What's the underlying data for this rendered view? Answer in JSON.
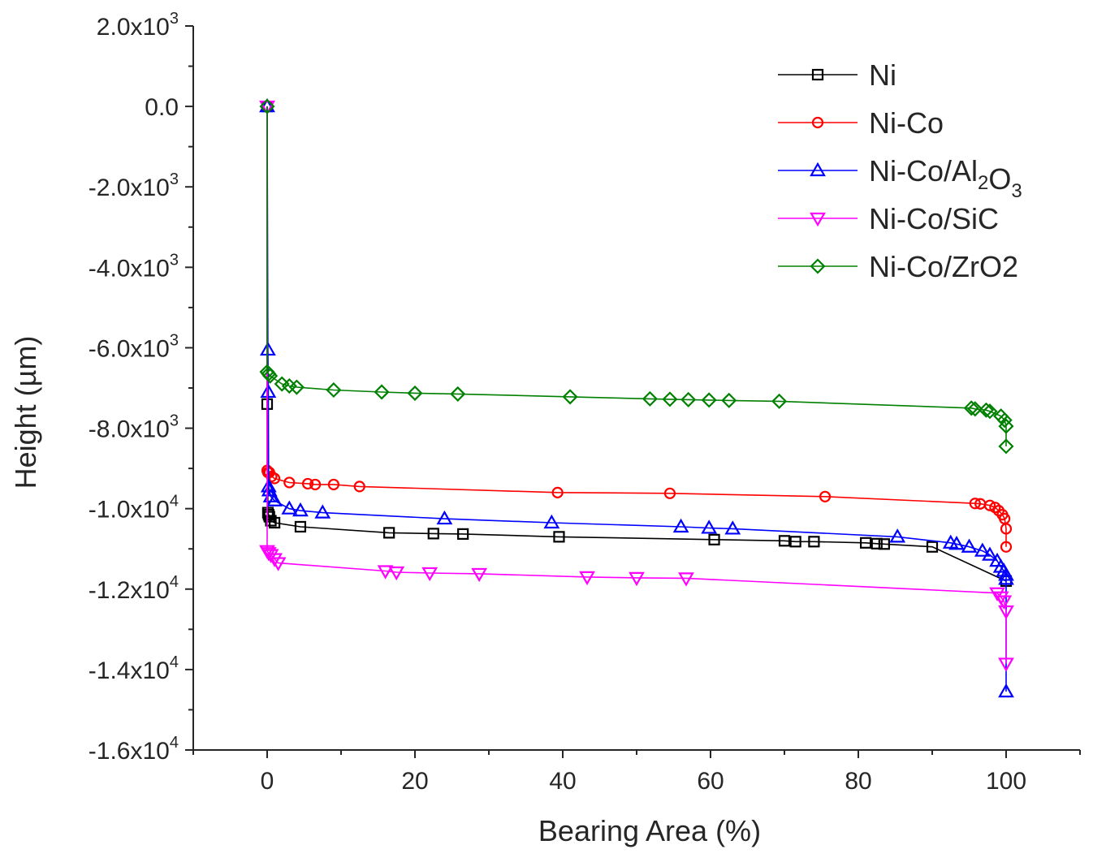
{
  "chart_data": {
    "type": "scatter",
    "xlabel": "Bearing Area (%)",
    "ylabel": "Height (µm)",
    "xlim": [
      -10,
      110
    ],
    "ylim": [
      -16000,
      2000
    ],
    "x_ticks": [
      {
        "value": 0,
        "label": "0"
      },
      {
        "value": 20,
        "label": "20"
      },
      {
        "value": 40,
        "label": "40"
      },
      {
        "value": 60,
        "label": "60"
      },
      {
        "value": 80,
        "label": "80"
      },
      {
        "value": 100,
        "label": "100"
      }
    ],
    "y_ticks": [
      {
        "value": 2000,
        "mantissa": "2.0x10",
        "exp": "3"
      },
      {
        "value": 0,
        "mantissa": "0.0",
        "exp": ""
      },
      {
        "value": -2000,
        "mantissa": "-2.0x10",
        "exp": "3"
      },
      {
        "value": -4000,
        "mantissa": "-4.0x10",
        "exp": "3"
      },
      {
        "value": -6000,
        "mantissa": "-6.0x10",
        "exp": "3"
      },
      {
        "value": -8000,
        "mantissa": "-8.0x10",
        "exp": "3"
      },
      {
        "value": -10000,
        "mantissa": "-1.0x10",
        "exp": "4"
      },
      {
        "value": -12000,
        "mantissa": "-1.2x10",
        "exp": "4"
      },
      {
        "value": -14000,
        "mantissa": "-1.4x10",
        "exp": "4"
      },
      {
        "value": -16000,
        "mantissa": "-1.6x10",
        "exp": "4"
      }
    ],
    "legend_position": "top-right",
    "series": [
      {
        "name": "Ni",
        "label_parts": [
          {
            "t": "Ni"
          }
        ],
        "color": "#000000",
        "marker": "square",
        "x": [
          0,
          0,
          0.1,
          0.2,
          0.3,
          0.5,
          1,
          4.5,
          16.5,
          22.5,
          26.5,
          39.5,
          60.5,
          70,
          71.5,
          74,
          81,
          82.5,
          83.5,
          90,
          100
        ],
        "y": [
          0,
          -7400,
          -10100,
          -10150,
          -10200,
          -10300,
          -10350,
          -10450,
          -10600,
          -10620,
          -10630,
          -10700,
          -10770,
          -10800,
          -10820,
          -10820,
          -10850,
          -10870,
          -10880,
          -10950,
          -11800
        ]
      },
      {
        "name": "Ni-Co",
        "label_parts": [
          {
            "t": "Ni-Co"
          }
        ],
        "color": "#ff0000",
        "marker": "circle",
        "x": [
          0,
          0,
          0.1,
          0.3,
          0.6,
          1,
          3,
          5.5,
          6.5,
          9,
          12.5,
          39.3,
          54.5,
          75.5,
          95.8,
          96.5,
          97.8,
          98.5,
          99,
          99.5,
          99.8,
          100,
          100
        ],
        "y": [
          0,
          -9050,
          -9100,
          -9100,
          -9200,
          -9250,
          -9350,
          -9380,
          -9400,
          -9400,
          -9450,
          -9600,
          -9620,
          -9700,
          -9870,
          -9880,
          -9920,
          -9970,
          -10050,
          -10150,
          -10250,
          -10500,
          -10950
        ]
      },
      {
        "name": "Ni-Co/Al2O3",
        "label_parts": [
          {
            "t": "Ni-Co/Al"
          },
          {
            "t": "2",
            "sub": true
          },
          {
            "t": "O"
          },
          {
            "t": "3",
            "sub": true
          }
        ],
        "color": "#0000ff",
        "marker": "triangle-up",
        "x": [
          0,
          0.1,
          0.15,
          0.2,
          0.3,
          0.5,
          1,
          3,
          4.5,
          7.5,
          24,
          38.5,
          56,
          59.8,
          63,
          85.3,
          92.5,
          93.3,
          95,
          96.8,
          97.8,
          98.8,
          99.3,
          99.7,
          100,
          100,
          100
        ],
        "y": [
          0,
          -6050,
          -7100,
          -9450,
          -9550,
          -9700,
          -9800,
          -10000,
          -10050,
          -10100,
          -10250,
          -10350,
          -10450,
          -10480,
          -10500,
          -10700,
          -10850,
          -10880,
          -10950,
          -11050,
          -11150,
          -11300,
          -11450,
          -11550,
          -11650,
          -11750,
          -14550
        ]
      },
      {
        "name": "Ni-Co/SiC",
        "label_parts": [
          {
            "t": "Ni-Co/SiC"
          }
        ],
        "color": "#ff00ff",
        "marker": "triangle-down",
        "x": [
          0,
          0,
          0.2,
          0.5,
          1,
          1.5,
          16,
          17.5,
          22,
          28.7,
          43.3,
          50,
          56.7,
          98.8,
          99.3,
          99.7,
          100,
          100
        ],
        "y": [
          0,
          -11050,
          -11100,
          -11150,
          -11250,
          -11350,
          -11550,
          -11580,
          -11600,
          -11620,
          -11700,
          -11720,
          -11730,
          -12100,
          -12200,
          -12300,
          -12550,
          -13850
        ]
      },
      {
        "name": "Ni-Co/ZrO2",
        "label_parts": [
          {
            "t": "Ni-Co/ZrO2"
          }
        ],
        "color": "#008000",
        "marker": "diamond",
        "x": [
          0,
          0,
          0.2,
          0.4,
          2,
          3,
          4,
          9,
          15.5,
          20,
          25.8,
          41,
          51.8,
          54.5,
          57,
          59.8,
          62.5,
          69.3,
          95.3,
          95.8,
          97.3,
          97.8,
          99.3,
          99.8,
          100,
          100
        ],
        "y": [
          0,
          -6600,
          -6650,
          -6700,
          -6900,
          -6950,
          -6980,
          -7050,
          -7100,
          -7130,
          -7150,
          -7220,
          -7270,
          -7280,
          -7290,
          -7300,
          -7310,
          -7330,
          -7500,
          -7520,
          -7550,
          -7580,
          -7700,
          -7800,
          -7950,
          -8450
        ]
      }
    ]
  }
}
